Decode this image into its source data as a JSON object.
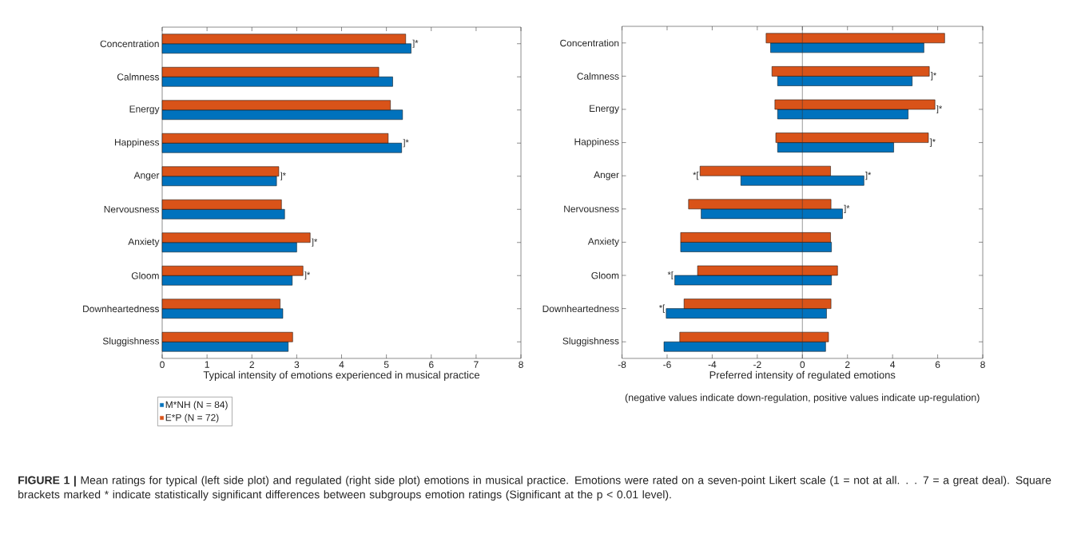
{
  "chart_data": [
    {
      "type": "bar",
      "orientation": "horizontal",
      "xlabel": "Typical intensity of emotions experienced in musical practice",
      "categories": [
        "Concentration",
        "Calmness",
        "Energy",
        "Happiness",
        "Anger",
        "Nervousness",
        "Anxiety",
        "Gloom",
        "Downheartedness",
        "Sluggishness"
      ],
      "series": [
        {
          "name": "M*NH (N = 84)",
          "color": "#0072bd",
          "values": [
            5.55,
            5.14,
            5.36,
            5.34,
            2.55,
            2.73,
            3.0,
            2.9,
            2.69,
            2.81
          ]
        },
        {
          "name": "E*P (N = 72)",
          "color": "#d95319",
          "values": [
            5.43,
            4.83,
            5.09,
            5.04,
            2.6,
            2.66,
            3.3,
            3.14,
            2.63,
            2.91
          ]
        }
      ],
      "xlim": [
        0,
        8
      ],
      "xticks": [
        0,
        1,
        2,
        3,
        4,
        5,
        6,
        7,
        8
      ],
      "legend": "bottom left",
      "annotations": [
        {
          "text": "]*",
          "x": 5.55,
          "y": "Concentration"
        },
        {
          "text": "]*",
          "x": 5.34,
          "y": "Happiness"
        },
        {
          "text": "]*",
          "x": 2.6,
          "y": "Anger"
        },
        {
          "text": "]*",
          "x": 3.3,
          "y": "Anxiety"
        },
        {
          "text": "]*",
          "x": 3.14,
          "y": "Gloom"
        },
        "**FIGURE 1 |** Mean ratings for typical (left side plot) and regulated (right side plot) emotions in musical practice. Emotions were rated on a seven-point Likert scale (1 = not at all. . . 7 = a great deal). Square brackets marked * indicate statistically significant differences between subgroups emotion ratings (Significant at the p < 0.01 level)."
      ]
    },
    {
      "type": "bar",
      "orientation": "horizontal",
      "xlabel": "Preferred intensity of regulated emotions",
      "categories": [
        "Concentration",
        "Calmness",
        "Energy",
        "Happiness",
        "Anger",
        "Nervousness",
        "Anxiety",
        "Gloom",
        "Downheartedness",
        "Sluggishness"
      ],
      "series": [
        {
          "color": "#0072bd",
          "base": [
            -1.41,
            -1.1,
            -1.1,
            -1.1,
            -2.73,
            -4.49,
            -5.4,
            -5.66,
            -6.04,
            -6.14
          ],
          "values": [
            6.8,
            5.97,
            5.79,
            5.15,
            5.46,
            6.27,
            6.69,
            6.95,
            7.11,
            7.17
          ]
        },
        {
          "color": "#d95319",
          "base": [
            -1.61,
            -1.35,
            -1.22,
            -1.18,
            -4.54,
            -5.05,
            -5.4,
            -4.65,
            -5.25,
            -5.44
          ],
          "values": [
            7.92,
            6.98,
            7.1,
            6.77,
            5.79,
            6.32,
            6.65,
            6.21,
            6.52,
            6.6
          ]
        }
      ],
      "xlim": [
        -8,
        8
      ],
      "xticks": [
        -8,
        -6,
        -4,
        -2,
        0,
        2,
        4,
        6,
        8
      ],
      "ref_lines": [
        {
          "axis": "x",
          "value": 0
        }
      ],
      "annotations": [
        {
          "text": "]*",
          "x": 5.63,
          "y": "Calmness"
        },
        {
          "text": "]*",
          "x": 5.88,
          "y": "Energy"
        },
        {
          "text": "]*",
          "x": 5.59,
          "y": "Happiness"
        },
        {
          "text": "]*",
          "x": 2.73,
          "y": "Anger"
        },
        {
          "text": "*[",
          "x": -4.54,
          "y": "Anger"
        },
        {
          "text": "]*",
          "x": 1.78,
          "y": "Nervousness"
        },
        {
          "text": "*[",
          "x": -5.66,
          "y": "Gloom"
        },
        {
          "text": "*[",
          "x": -6.04,
          "y": "Downheartedness"
        },
        "(negative values indicate down-regulation, positive values indicate up-regulation)"
      ]
    }
  ]
}
